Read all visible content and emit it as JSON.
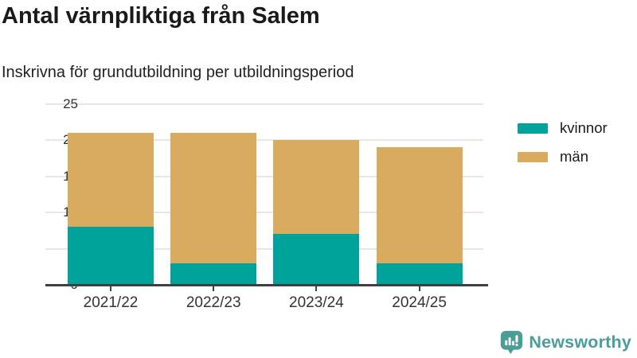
{
  "header": {
    "title": "Antal värnpliktiga från Salem",
    "subtitle": "Inskrivna för grundutbildning per utbildningsperiod"
  },
  "chart_data": {
    "type": "bar",
    "stacked": true,
    "title": "Antal värnpliktiga från Salem",
    "subtitle": "Inskrivna för grundutbildning per utbildningsperiod",
    "categories": [
      "2021/22",
      "2022/23",
      "2023/24",
      "2024/25"
    ],
    "series": [
      {
        "name": "kvinnor",
        "color": "#00a39c",
        "values": [
          8,
          3,
          7,
          3
        ]
      },
      {
        "name": "män",
        "color": "#d9ab5e",
        "values": [
          13,
          18,
          13,
          16
        ]
      }
    ],
    "totals": [
      21,
      21,
      20,
      19
    ],
    "xlabel": "",
    "ylabel": "",
    "ylim": [
      0,
      25
    ],
    "yticks": [
      0,
      5,
      10,
      15,
      20,
      25
    ],
    "grid": true,
    "legend_position": "right"
  },
  "footer": {
    "brand": "Newsworthy",
    "brand_color": "#4a9e97"
  }
}
